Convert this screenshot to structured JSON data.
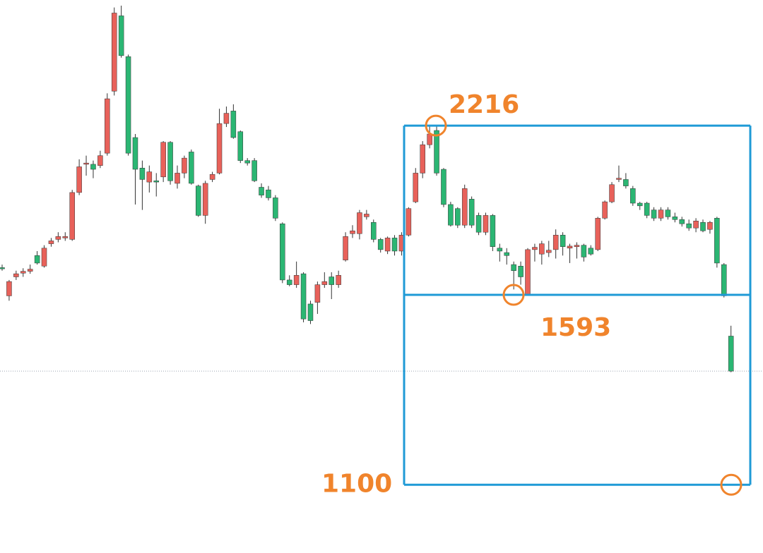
{
  "chart_data": {
    "type": "candlestick",
    "log_scale": true,
    "ylim": [
      963,
      2831
    ],
    "up_color": "#e8615a",
    "down_color": "#2bb673",
    "box_color": "#1f9ad6",
    "marker_color": "#f0842c",
    "open": [
      1680,
      1590,
      1650,
      1662,
      1668,
      1720,
      1685,
      1760,
      1775,
      1780,
      1775,
      1945,
      2055,
      2055,
      2050,
      2100,
      2370,
      2745,
      2535,
      2165,
      2040,
      1985,
      1990,
      2005,
      2145,
      1980,
      2020,
      2105,
      1970,
      1860,
      1995,
      2020,
      2225,
      2280,
      2190,
      2070,
      2070,
      1965,
      1955,
      1925,
      1830,
      1640,
      1625,
      1660,
      1565,
      1570,
      1625,
      1650,
      1625,
      1705,
      1795,
      1795,
      1855,
      1835,
      1775,
      1735,
      1780,
      1735,
      1790,
      1910,
      2020,
      2135,
      2195,
      2035,
      1900,
      1885,
      1825,
      1920,
      1860,
      1800,
      1860,
      1745,
      1730,
      1690,
      1685,
      1595,
      1740,
      1725,
      1730,
      1740,
      1790,
      1745,
      1750,
      1755,
      1745,
      1740,
      1850,
      1910,
      1995,
      1995,
      1960,
      1905,
      1905,
      1880,
      1850,
      1880,
      1855,
      1845,
      1830,
      1815,
      1835,
      1810,
      1850,
      1690,
      1470
    ],
    "high": [
      1690,
      1640,
      1670,
      1678,
      1690,
      1735,
      1755,
      1780,
      1800,
      1800,
      1955,
      2075,
      2090,
      2070,
      2110,
      2360,
      2790,
      2800,
      2545,
      2180,
      2070,
      2050,
      2020,
      2150,
      2150,
      2050,
      2090,
      2115,
      1975,
      1990,
      2025,
      2290,
      2300,
      2310,
      2195,
      2080,
      2080,
      1980,
      1970,
      1935,
      1835,
      1655,
      1700,
      1665,
      1575,
      1635,
      1665,
      1665,
      1670,
      1800,
      1825,
      1880,
      1880,
      1845,
      1780,
      1785,
      1790,
      1800,
      1890,
      2040,
      2150,
      2216,
      2216,
      2040,
      1910,
      1890,
      1975,
      1930,
      1870,
      1870,
      1865,
      1760,
      1745,
      1700,
      1700,
      1745,
      1760,
      1770,
      1770,
      1810,
      1800,
      1760,
      1765,
      1760,
      1755,
      1855,
      1915,
      1985,
      2050,
      2020,
      1970,
      1910,
      1910,
      1890,
      1890,
      1890,
      1870,
      1855,
      1845,
      1850,
      1845,
      1840,
      1855,
      1695,
      1500
    ],
    "low": [
      1670,
      1575,
      1640,
      1650,
      1660,
      1690,
      1680,
      1750,
      1765,
      1770,
      1770,
      1935,
      2010,
      2000,
      2040,
      2090,
      2350,
      2530,
      2090,
      1900,
      1880,
      1945,
      1930,
      1985,
      1975,
      1960,
      2000,
      1975,
      1855,
      1830,
      1985,
      2015,
      2210,
      2160,
      2060,
      2050,
      1985,
      1925,
      1915,
      1840,
      1630,
      1620,
      1615,
      1510,
      1505,
      1535,
      1615,
      1580,
      1615,
      1700,
      1780,
      1775,
      1845,
      1765,
      1730,
      1725,
      1720,
      1720,
      1785,
      1905,
      2000,
      2120,
      2010,
      1890,
      1820,
      1815,
      1815,
      1815,
      1790,
      1790,
      1735,
      1700,
      1690,
      1610,
      1625,
      1593,
      1700,
      1690,
      1715,
      1710,
      1720,
      1695,
      1710,
      1700,
      1720,
      1735,
      1845,
      1905,
      1985,
      1960,
      1895,
      1880,
      1850,
      1840,
      1840,
      1845,
      1835,
      1820,
      1805,
      1800,
      1800,
      1795,
      1680,
      1585,
      1370
    ],
    "close": [
      1676,
      1635,
      1660,
      1668,
      1675,
      1695,
      1745,
      1770,
      1785,
      1785,
      1945,
      2045,
      2060,
      2035,
      2090,
      2335,
      2760,
      2540,
      2100,
      2035,
      1995,
      2025,
      1985,
      2145,
      1990,
      2020,
      2080,
      1980,
      1860,
      1980,
      2015,
      2225,
      2270,
      2165,
      2070,
      2060,
      1990,
      1935,
      1925,
      1850,
      1640,
      1625,
      1655,
      1520,
      1515,
      1625,
      1635,
      1625,
      1655,
      1785,
      1805,
      1870,
      1865,
      1775,
      1740,
      1780,
      1735,
      1790,
      1885,
      2020,
      2135,
      2180,
      2020,
      1900,
      1825,
      1825,
      1960,
      1825,
      1800,
      1860,
      1750,
      1735,
      1720,
      1670,
      1650,
      1740,
      1748,
      1760,
      1738,
      1790,
      1750,
      1752,
      1755,
      1715,
      1725,
      1850,
      1910,
      1975,
      2000,
      1970,
      1905,
      1895,
      1860,
      1850,
      1880,
      1855,
      1845,
      1830,
      1815,
      1840,
      1805,
      1835,
      1695,
      1590,
      1373
    ],
    "levels": [
      2216,
      1593,
      1100
    ]
  }
}
